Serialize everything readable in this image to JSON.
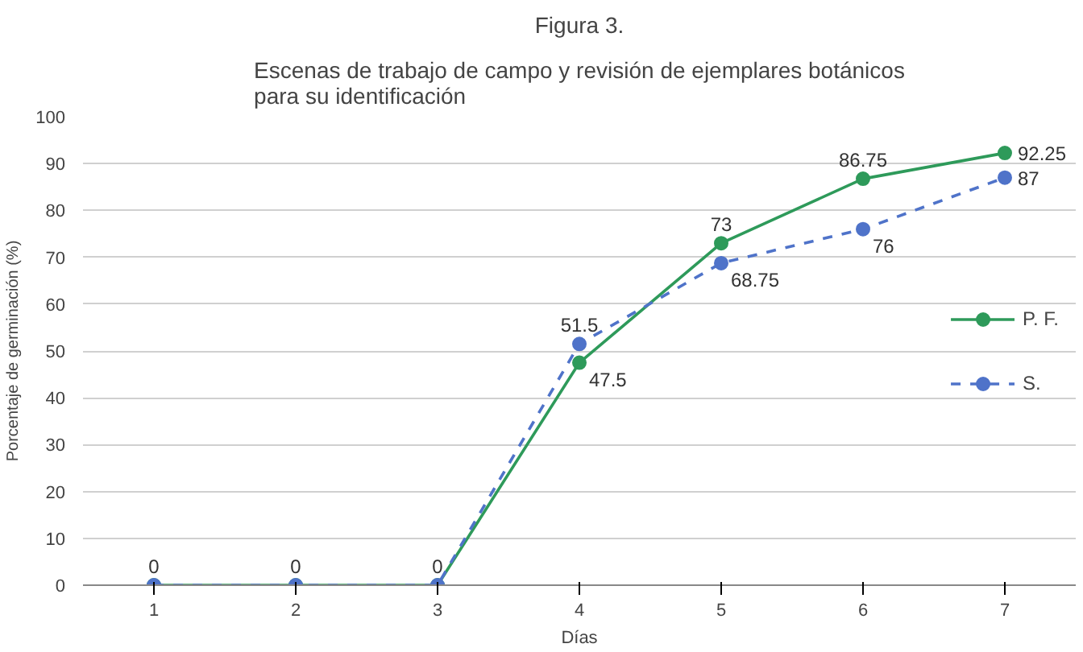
{
  "chart_data": {
    "type": "line",
    "title": "Figura 3.",
    "subtitle": "Escenas de trabajo de campo y revisión de ejemplares botánicos\npara su identificación",
    "xlabel": "Días",
    "ylabel": "Porcentaje de germinación (%)",
    "categories": [
      "1",
      "2",
      "3",
      "4",
      "5",
      "6",
      "7"
    ],
    "series": [
      {
        "name": "P. F.",
        "color": "#2e9a5a",
        "marker": "circle",
        "line_style": "solid",
        "values": [
          0,
          0,
          0,
          47.5,
          73,
          86.75,
          92.25
        ],
        "value_labels": [
          "0",
          "0",
          "0",
          "47.5",
          "73",
          "86.75",
          "92.25"
        ]
      },
      {
        "name": "S.",
        "color": "#4f73c9",
        "marker": "circle",
        "line_style": "dashed",
        "values": [
          0,
          0,
          0,
          51.5,
          68.75,
          76,
          87
        ],
        "value_labels": [
          null,
          null,
          null,
          "51.5",
          "68.75",
          "76",
          "87"
        ]
      }
    ],
    "ylim": [
      0,
      100
    ],
    "yticks": [
      0,
      10,
      20,
      30,
      40,
      50,
      60,
      70,
      80,
      90,
      100
    ],
    "grid": "y",
    "legend": "right"
  }
}
